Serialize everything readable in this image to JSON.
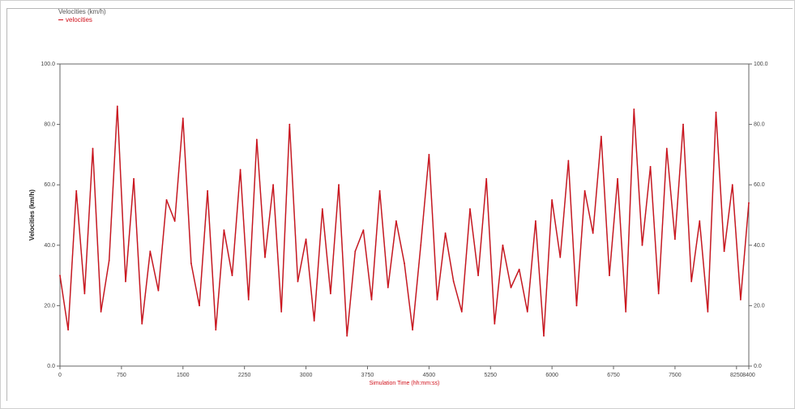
{
  "legend": {
    "title": "Velocities (km/h)",
    "entries": [
      {
        "label": "velocities"
      }
    ]
  },
  "colors": {
    "series": "#d0101a",
    "series_dark": "#6b0a0f",
    "axis": "#666666",
    "xlabel": "#d0101a"
  },
  "chart_data": {
    "type": "line",
    "title": "",
    "xlabel": "Simulation Time (hh:mm:ss)",
    "ylabel": "Velocities (km/h)",
    "xlim": [
      0,
      8400
    ],
    "ylim": [
      0,
      100
    ],
    "y2lim": [
      0,
      100
    ],
    "grid": false,
    "legend_position": "top-left",
    "x_ticks": [
      0,
      750,
      1500,
      2250,
      3000,
      3750,
      4500,
      5250,
      6000,
      6750,
      7500,
      8250,
      8400
    ],
    "x_tick_labels": [
      "0",
      "750",
      "1500",
      "2250",
      "3000",
      "3750",
      "4500",
      "5250",
      "6000",
      "6750",
      "7500",
      "8250",
      "8400"
    ],
    "y_ticks": [
      0,
      20,
      40,
      60,
      80,
      100
    ],
    "y_tick_labels": [
      "0.0",
      "20.0",
      "40.0",
      "60.0",
      "80.0",
      "100.0"
    ],
    "y2_tick_labels": [
      "0.0",
      "20.0",
      "40.0",
      "60.0",
      "80.0",
      "100.0"
    ],
    "series": [
      {
        "name": "velocities",
        "x": [
          0,
          100,
          200,
          300,
          400,
          500,
          600,
          700,
          800,
          900,
          1000,
          1100,
          1200,
          1300,
          1400,
          1500,
          1600,
          1700,
          1800,
          1900,
          2000,
          2100,
          2200,
          2300,
          2400,
          2500,
          2600,
          2700,
          2800,
          2900,
          3000,
          3100,
          3200,
          3300,
          3400,
          3500,
          3600,
          3700,
          3800,
          3900,
          4000,
          4100,
          4200,
          4300,
          4400,
          4500,
          4600,
          4700,
          4800,
          4900,
          5000,
          5100,
          5200,
          5300,
          5400,
          5500,
          5600,
          5700,
          5800,
          5900,
          6000,
          6100,
          6200,
          6300,
          6400,
          6500,
          6600,
          6700,
          6800,
          6900,
          7000,
          7100,
          7200,
          7300,
          7400,
          7500,
          7600,
          7700,
          7800,
          7900,
          8000,
          8100,
          8200,
          8300,
          8400
        ],
        "values": [
          30,
          12,
          58,
          24,
          72,
          18,
          35,
          86,
          28,
          62,
          14,
          38,
          25,
          55,
          48,
          82,
          34,
          20,
          58,
          12,
          45,
          30,
          65,
          22,
          75,
          36,
          60,
          18,
          80,
          28,
          42,
          15,
          52,
          24,
          60,
          10,
          38,
          45,
          22,
          58,
          26,
          48,
          34,
          12,
          40,
          70,
          22,
          44,
          28,
          18,
          52,
          30,
          62,
          14,
          40,
          26,
          32,
          18,
          48,
          10,
          55,
          36,
          68,
          20,
          58,
          44,
          76,
          30,
          62,
          18,
          85,
          40,
          66,
          24,
          72,
          42,
          80,
          28,
          48,
          18,
          84,
          38,
          60,
          22,
          54
        ]
      }
    ]
  }
}
